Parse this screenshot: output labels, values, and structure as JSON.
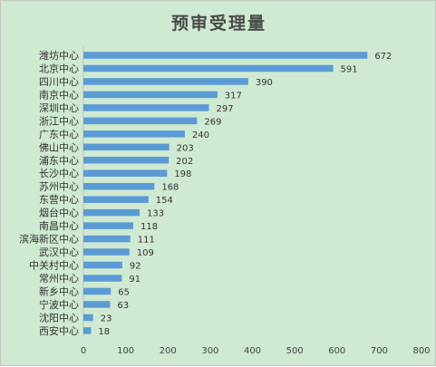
{
  "chart_data": {
    "type": "bar",
    "orientation": "horizontal",
    "title": "预审受理量",
    "categories": [
      "潍坊中心",
      "北京中心",
      "四川中心",
      "南京中心",
      "深圳中心",
      "浙江中心",
      "广东中心",
      "佛山中心",
      "浦东中心",
      "长沙中心",
      "苏州中心",
      "东营中心",
      "烟台中心",
      "南昌中心",
      "滨海新区中心",
      "武汉中心",
      "中关村中心",
      "常州中心",
      "新乡中心",
      "宁波中心",
      "沈阳中心",
      "西安中心"
    ],
    "values": [
      672,
      591,
      390,
      317,
      297,
      269,
      240,
      203,
      202,
      198,
      168,
      154,
      133,
      118,
      111,
      109,
      92,
      91,
      65,
      63,
      23,
      18
    ],
    "xlim": [
      0,
      800
    ],
    "xticks": [
      0,
      100,
      200,
      300,
      400,
      500,
      600,
      700,
      800
    ],
    "data_labels": true,
    "grid": false,
    "colors": {
      "bar": "#5b9bd5",
      "background": "#cfe9d2"
    }
  }
}
